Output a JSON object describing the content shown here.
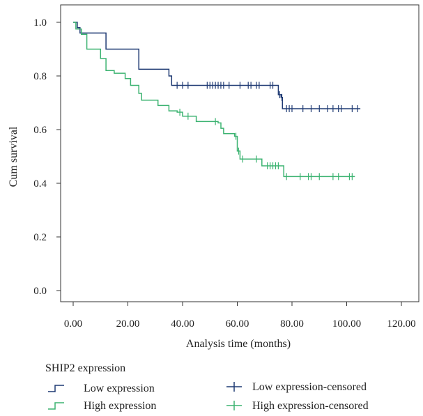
{
  "chart_data": {
    "type": "line",
    "subtype": "kaplan-meier-step",
    "title": "",
    "xlabel": "Analysis time (months)",
    "ylabel": "Cum survival",
    "xlim": [
      0,
      120
    ],
    "ylim": [
      0,
      1.0
    ],
    "x_ticks": [
      "0.00",
      "20.00",
      "40.00",
      "60.00",
      "80.00",
      "100.00",
      "120.00"
    ],
    "y_ticks": [
      "0.0",
      "0.2",
      "0.4",
      "0.6",
      "0.8",
      "1.0"
    ],
    "grid": false,
    "legend": {
      "title": "SHIP2 expression",
      "placement": "bottom",
      "entries": [
        "Low expression",
        "High expression",
        "Low expression-censored",
        "High expression-censored"
      ]
    },
    "series": [
      {
        "name": "Low expression",
        "color": "#1f3a73",
        "steps": [
          [
            0,
            1.0
          ],
          [
            1.5,
            1.0
          ],
          [
            1.5,
            0.98
          ],
          [
            2.5,
            0.98
          ],
          [
            2.5,
            0.96
          ],
          [
            12,
            0.96
          ],
          [
            12,
            0.9
          ],
          [
            24,
            0.9
          ],
          [
            24,
            0.825
          ],
          [
            35,
            0.825
          ],
          [
            35,
            0.8
          ],
          [
            36,
            0.8
          ],
          [
            36,
            0.765
          ],
          [
            75,
            0.765
          ],
          [
            75,
            0.73
          ],
          [
            76,
            0.73
          ],
          [
            76,
            0.72
          ],
          [
            76.5,
            0.72
          ],
          [
            76.5,
            0.678
          ],
          [
            105,
            0.678
          ]
        ],
        "censored": [
          [
            38,
            0.765
          ],
          [
            40,
            0.765
          ],
          [
            42,
            0.765
          ],
          [
            49,
            0.765
          ],
          [
            50,
            0.765
          ],
          [
            51,
            0.765
          ],
          [
            52,
            0.765
          ],
          [
            53,
            0.765
          ],
          [
            54,
            0.765
          ],
          [
            55,
            0.765
          ],
          [
            57,
            0.765
          ],
          [
            61,
            0.765
          ],
          [
            64,
            0.765
          ],
          [
            65,
            0.765
          ],
          [
            67,
            0.765
          ],
          [
            68,
            0.765
          ],
          [
            72,
            0.765
          ],
          [
            73,
            0.765
          ],
          [
            75.5,
            0.73
          ],
          [
            76.3,
            0.72
          ],
          [
            78,
            0.678
          ],
          [
            79,
            0.678
          ],
          [
            80,
            0.678
          ],
          [
            84,
            0.678
          ],
          [
            87,
            0.678
          ],
          [
            90,
            0.678
          ],
          [
            93,
            0.678
          ],
          [
            95,
            0.678
          ],
          [
            97,
            0.678
          ],
          [
            98,
            0.678
          ],
          [
            102,
            0.678
          ],
          [
            104,
            0.678
          ]
        ]
      },
      {
        "name": "High expression",
        "color": "#3cb371",
        "steps": [
          [
            0,
            1.0
          ],
          [
            1,
            1.0
          ],
          [
            1,
            0.975
          ],
          [
            3,
            0.975
          ],
          [
            3,
            0.955
          ],
          [
            5,
            0.955
          ],
          [
            5,
            0.9
          ],
          [
            10,
            0.9
          ],
          [
            10,
            0.865
          ],
          [
            12,
            0.865
          ],
          [
            12,
            0.82
          ],
          [
            15,
            0.82
          ],
          [
            15,
            0.81
          ],
          [
            19,
            0.81
          ],
          [
            19,
            0.79
          ],
          [
            21,
            0.79
          ],
          [
            21,
            0.765
          ],
          [
            24,
            0.765
          ],
          [
            24,
            0.735
          ],
          [
            25,
            0.735
          ],
          [
            25,
            0.71
          ],
          [
            31,
            0.71
          ],
          [
            31,
            0.69
          ],
          [
            35,
            0.69
          ],
          [
            35,
            0.67
          ],
          [
            38,
            0.67
          ],
          [
            38,
            0.665
          ],
          [
            40,
            0.665
          ],
          [
            40,
            0.65
          ],
          [
            45,
            0.65
          ],
          [
            45,
            0.63
          ],
          [
            53,
            0.63
          ],
          [
            53,
            0.625
          ],
          [
            54,
            0.625
          ],
          [
            54,
            0.605
          ],
          [
            55,
            0.605
          ],
          [
            55,
            0.585
          ],
          [
            59,
            0.585
          ],
          [
            59,
            0.575
          ],
          [
            60,
            0.575
          ],
          [
            60,
            0.52
          ],
          [
            61,
            0.52
          ],
          [
            61,
            0.49
          ],
          [
            69,
            0.49
          ],
          [
            69,
            0.465
          ],
          [
            77,
            0.465
          ],
          [
            77,
            0.425
          ],
          [
            103,
            0.425
          ]
        ],
        "censored": [
          [
            39,
            0.665
          ],
          [
            42,
            0.65
          ],
          [
            52,
            0.63
          ],
          [
            59.5,
            0.575
          ],
          [
            60.5,
            0.52
          ],
          [
            62,
            0.49
          ],
          [
            67,
            0.49
          ],
          [
            71,
            0.465
          ],
          [
            72,
            0.465
          ],
          [
            73,
            0.465
          ],
          [
            74,
            0.465
          ],
          [
            75,
            0.465
          ],
          [
            78,
            0.425
          ],
          [
            83,
            0.425
          ],
          [
            86,
            0.425
          ],
          [
            87,
            0.425
          ],
          [
            90,
            0.425
          ],
          [
            95,
            0.425
          ],
          [
            97,
            0.425
          ],
          [
            101,
            0.425
          ],
          [
            102,
            0.425
          ]
        ]
      }
    ]
  }
}
